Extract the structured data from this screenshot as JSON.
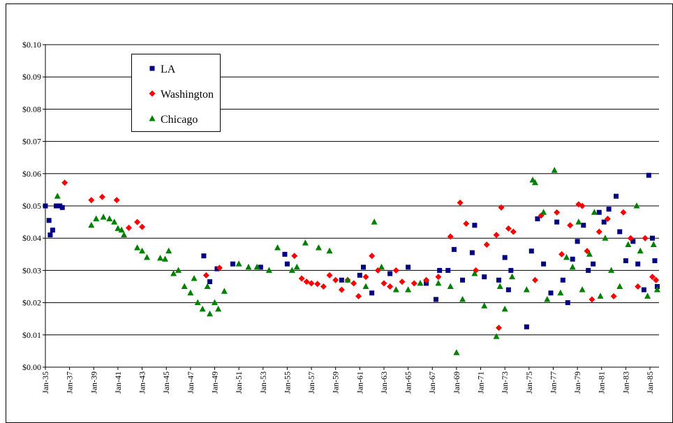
{
  "chart_data": {
    "type": "scatter",
    "xlim": [
      1935,
      1985.75
    ],
    "ylim": [
      0,
      0.1
    ],
    "yticks": [
      {
        "value": 0,
        "label": "$0.00"
      },
      {
        "value": 0.01,
        "label": "$0.01"
      },
      {
        "value": 0.02,
        "label": "$0.02"
      },
      {
        "value": 0.03,
        "label": "$0.03"
      },
      {
        "value": 0.04,
        "label": "$0.04"
      },
      {
        "value": 0.05,
        "label": "$0.05"
      },
      {
        "value": 0.06,
        "label": "$0.06"
      },
      {
        "value": 0.07,
        "label": "$0.07"
      },
      {
        "value": 0.08,
        "label": "$0.08"
      },
      {
        "value": 0.09,
        "label": "$0.09"
      },
      {
        "value": 0.1,
        "label": "$0.10"
      }
    ],
    "xticks": [
      {
        "value": 1935,
        "label": "Jan-35"
      },
      {
        "value": 1937,
        "label": "Jan-37"
      },
      {
        "value": 1939,
        "label": "Jan-39"
      },
      {
        "value": 1941,
        "label": "Jan-41"
      },
      {
        "value": 1943,
        "label": "Jan-43"
      },
      {
        "value": 1945,
        "label": "Jan-45"
      },
      {
        "value": 1947,
        "label": "Jan-47"
      },
      {
        "value": 1949,
        "label": "Jan-49"
      },
      {
        "value": 1951,
        "label": "Jan-51"
      },
      {
        "value": 1953,
        "label": "Jan-53"
      },
      {
        "value": 1955,
        "label": "Jan-55"
      },
      {
        "value": 1957,
        "label": "Jan-57"
      },
      {
        "value": 1959,
        "label": "Jan-59"
      },
      {
        "value": 1961,
        "label": "Jan-61"
      },
      {
        "value": 1963,
        "label": "Jan-63"
      },
      {
        "value": 1965,
        "label": "Jan-65"
      },
      {
        "value": 1967,
        "label": "Jan-67"
      },
      {
        "value": 1969,
        "label": "Jan-69"
      },
      {
        "value": 1971,
        "label": "Jan-71"
      },
      {
        "value": 1973,
        "label": "Jan-73"
      },
      {
        "value": 1975,
        "label": "Jan-75"
      },
      {
        "value": 1977,
        "label": "Jan-77"
      },
      {
        "value": 1979,
        "label": "Jan-79"
      },
      {
        "value": 1981,
        "label": "Jan-81"
      },
      {
        "value": 1983,
        "label": "Jan-83"
      },
      {
        "value": 1985,
        "label": "Jan-85"
      }
    ],
    "grid": true,
    "legend": "upper left",
    "series": [
      {
        "name": "LA",
        "color": "#000080",
        "marker": "square",
        "x": [
          1935.0,
          1935.3,
          1935.4,
          1935.6,
          1935.9,
          1936.2,
          1936.4,
          1948.1,
          1948.6,
          1949.2,
          1950.5,
          1952.8,
          1954.8,
          1955.0,
          1959.5,
          1961.0,
          1961.3,
          1962.0,
          1963.5,
          1965.0,
          1966.5,
          1967.3,
          1967.6,
          1968.3,
          1968.8,
          1969.5,
          1970.5,
          1970.3,
          1971.3,
          1972.5,
          1973.0,
          1973.3,
          1973.5,
          1974.8,
          1975.2,
          1975.7,
          1976.2,
          1976.8,
          1977.3,
          1977.8,
          1978.2,
          1978.6,
          1979.0,
          1979.5,
          1979.9,
          1980.3,
          1980.8,
          1981.2,
          1981.6,
          1982.2,
          1982.5,
          1983.0,
          1983.6,
          1984.0,
          1984.5,
          1984.9,
          1985.2,
          1985.4,
          1985.6
        ],
        "values": [
          0.05,
          0.0455,
          0.041,
          0.0425,
          0.05,
          0.05,
          0.0495,
          0.0345,
          0.0265,
          0.0305,
          0.032,
          0.031,
          0.035,
          0.032,
          0.027,
          0.0285,
          0.031,
          0.023,
          0.029,
          0.031,
          0.026,
          0.021,
          0.03,
          0.03,
          0.0365,
          0.027,
          0.044,
          0.0355,
          0.028,
          0.027,
          0.034,
          0.024,
          0.03,
          0.0125,
          0.036,
          0.046,
          0.032,
          0.023,
          0.045,
          0.027,
          0.02,
          0.0335,
          0.039,
          0.044,
          0.03,
          0.032,
          0.048,
          0.045,
          0.049,
          0.053,
          0.042,
          0.033,
          0.039,
          0.032,
          0.024,
          0.0595,
          0.04,
          0.033,
          0.025
        ]
      },
      {
        "name": "Washington",
        "color": "#ff0000",
        "marker": "diamond",
        "x": [
          1936.6,
          1938.8,
          1939.7,
          1940.9,
          1941.9,
          1942.6,
          1943.0,
          1948.3,
          1949.4,
          1955.6,
          1956.2,
          1956.6,
          1957.0,
          1957.5,
          1958.0,
          1958.5,
          1959.0,
          1959.5,
          1960.0,
          1960.5,
          1960.9,
          1961.5,
          1962.0,
          1962.5,
          1963.0,
          1963.5,
          1964.0,
          1964.5,
          1965.5,
          1966.5,
          1967.5,
          1968.5,
          1969.3,
          1969.8,
          1970.6,
          1971.5,
          1972.3,
          1972.5,
          1972.7,
          1973.3,
          1973.7,
          1975.5,
          1976.0,
          1977.3,
          1977.7,
          1978.4,
          1979.1,
          1979.4,
          1979.8,
          1980.2,
          1980.8,
          1981.5,
          1982.0,
          1982.8,
          1983.4,
          1984.0,
          1984.6,
          1985.2,
          1985.5
        ],
        "values": [
          0.0572,
          0.0518,
          0.0528,
          0.0518,
          0.0432,
          0.045,
          0.0435,
          0.0285,
          0.0308,
          0.0345,
          0.0275,
          0.0265,
          0.026,
          0.0258,
          0.025,
          0.0285,
          0.027,
          0.024,
          0.027,
          0.026,
          0.022,
          0.028,
          0.0345,
          0.03,
          0.026,
          0.025,
          0.03,
          0.0265,
          0.026,
          0.027,
          0.028,
          0.0405,
          0.051,
          0.0445,
          0.03,
          0.038,
          0.041,
          0.0122,
          0.0495,
          0.043,
          0.042,
          0.027,
          0.047,
          0.048,
          0.035,
          0.044,
          0.0505,
          0.05,
          0.036,
          0.021,
          0.042,
          0.046,
          0.022,
          0.048,
          0.04,
          0.025,
          0.04,
          0.028,
          0.027
        ]
      },
      {
        "name": "Chicago",
        "color": "#008000",
        "marker": "triangle",
        "x": [
          1936.0,
          1938.8,
          1939.2,
          1939.8,
          1940.3,
          1940.7,
          1941.0,
          1941.3,
          1941.5,
          1942.6,
          1943.0,
          1943.4,
          1944.5,
          1944.9,
          1945.2,
          1945.6,
          1946.0,
          1946.5,
          1947.0,
          1947.3,
          1947.6,
          1948.0,
          1948.4,
          1948.6,
          1949.0,
          1949.3,
          1949.8,
          1951.0,
          1951.8,
          1952.5,
          1953.5,
          1954.2,
          1955.4,
          1955.8,
          1956.5,
          1957.6,
          1958.5,
          1960.0,
          1961.5,
          1962.2,
          1962.8,
          1964.0,
          1965.0,
          1966.0,
          1967.5,
          1968.5,
          1969.0,
          1969.5,
          1970.5,
          1971.3,
          1972.3,
          1972.6,
          1973.0,
          1973.6,
          1974.8,
          1975.3,
          1975.5,
          1976.2,
          1976.5,
          1977.1,
          1977.6,
          1978.1,
          1978.6,
          1979.1,
          1979.4,
          1980.0,
          1980.4,
          1980.9,
          1981.3,
          1981.8,
          1982.5,
          1983.2,
          1983.9,
          1984.2,
          1984.8,
          1985.3,
          1985.6
        ],
        "values": [
          0.053,
          0.044,
          0.046,
          0.0465,
          0.046,
          0.045,
          0.043,
          0.0425,
          0.041,
          0.037,
          0.036,
          0.034,
          0.0338,
          0.0335,
          0.036,
          0.029,
          0.03,
          0.025,
          0.023,
          0.0275,
          0.02,
          0.018,
          0.025,
          0.0165,
          0.02,
          0.018,
          0.0235,
          0.032,
          0.031,
          0.031,
          0.03,
          0.037,
          0.03,
          0.031,
          0.0385,
          0.037,
          0.036,
          0.027,
          0.025,
          0.045,
          0.031,
          0.024,
          0.024,
          0.026,
          0.026,
          0.025,
          0.0045,
          0.021,
          0.029,
          0.019,
          0.0095,
          0.025,
          0.018,
          0.028,
          0.024,
          0.058,
          0.0572,
          0.048,
          0.021,
          0.061,
          0.023,
          0.034,
          0.031,
          0.045,
          0.024,
          0.035,
          0.048,
          0.022,
          0.04,
          0.03,
          0.025,
          0.038,
          0.05,
          0.036,
          0.022,
          0.038,
          0.024
        ]
      }
    ]
  }
}
